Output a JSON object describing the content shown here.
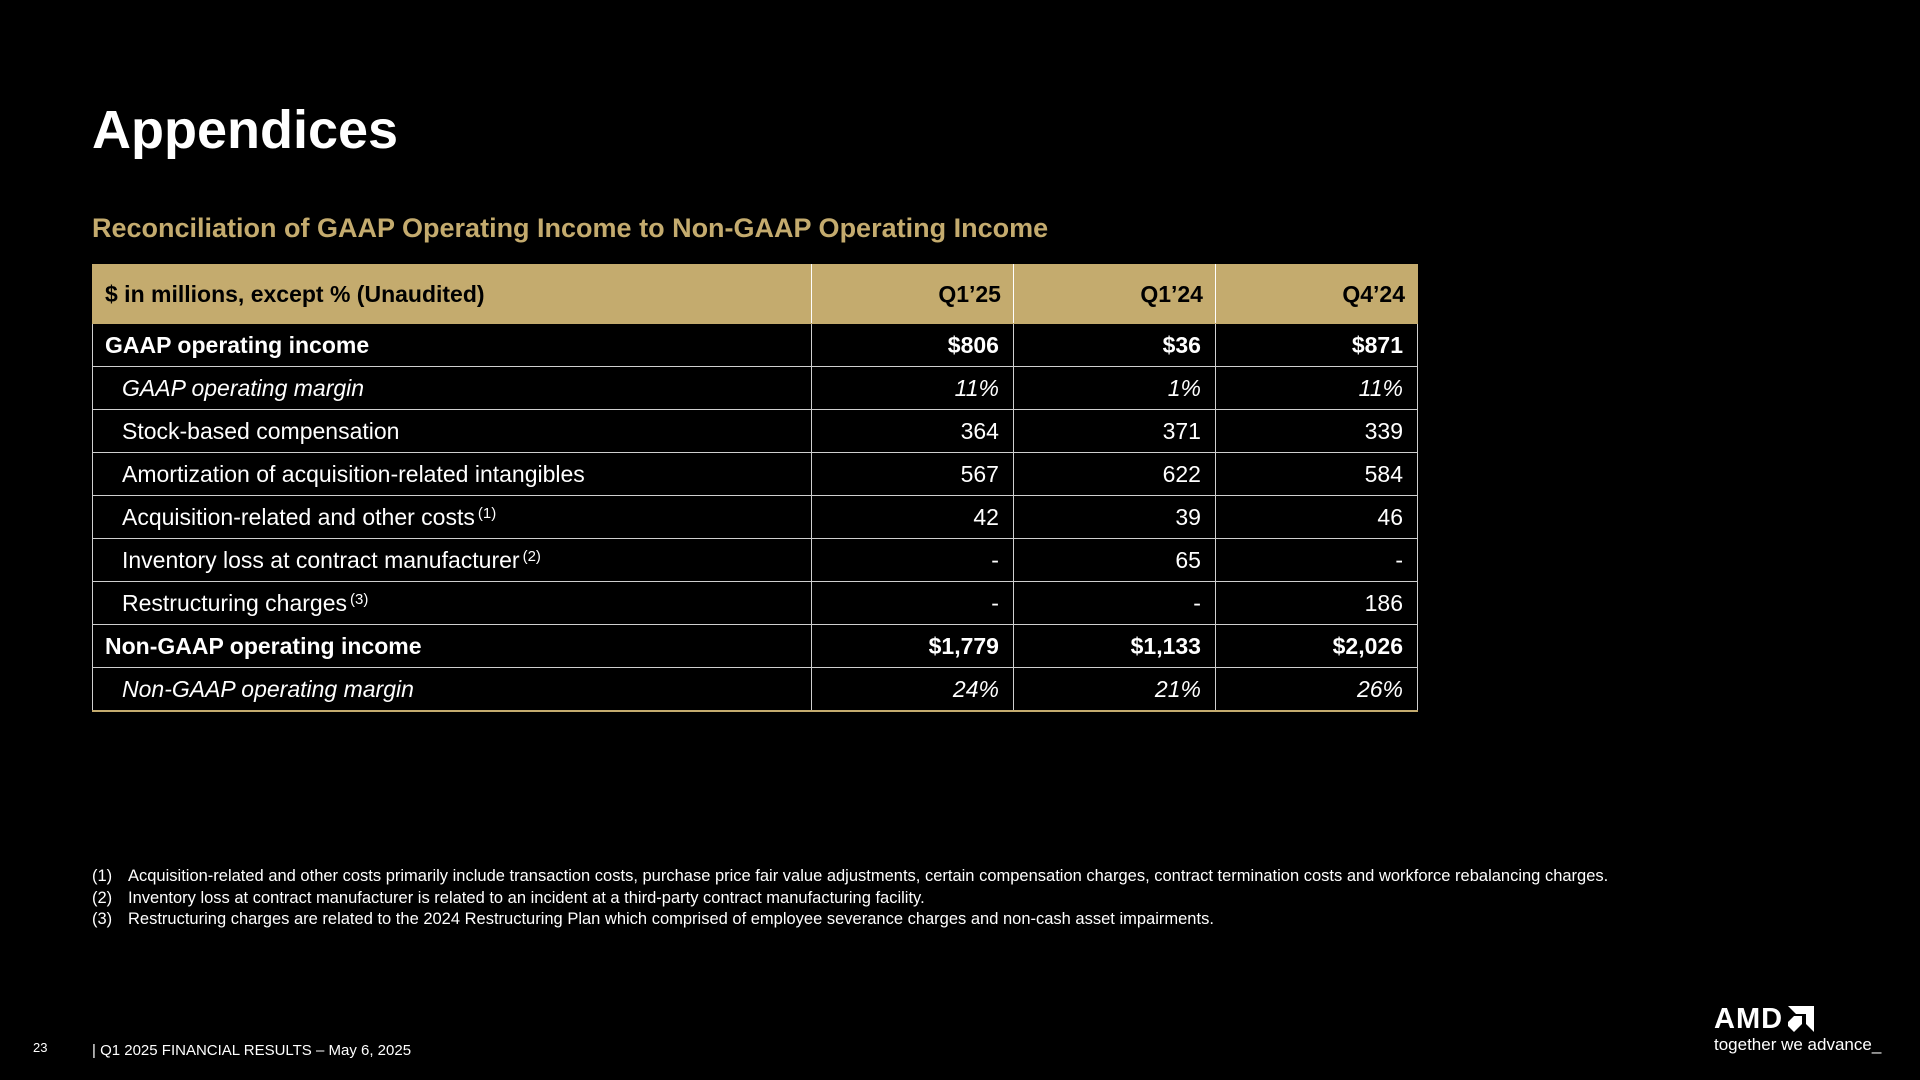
{
  "title": "Appendices",
  "subtitle": "Reconciliation of GAAP Operating Income to Non-GAAP Operating Income",
  "table": {
    "header": [
      "$ in millions, except % (Unaudited)",
      "Q1’25",
      "Q1’24",
      "Q4’24"
    ],
    "rows": [
      {
        "label": "GAAP operating income",
        "note": "",
        "values": [
          "$806",
          "$36",
          "$871"
        ]
      },
      {
        "label": "GAAP operating margin",
        "note": "",
        "values": [
          "11%",
          "1%",
          "11%"
        ]
      },
      {
        "label": "Stock-based compensation",
        "note": "",
        "values": [
          "364",
          "371",
          "339"
        ]
      },
      {
        "label": "Amortization of acquisition-related intangibles",
        "note": "",
        "values": [
          "567",
          "622",
          "584"
        ]
      },
      {
        "label": "Acquisition-related and other costs",
        "note": "(1)",
        "values": [
          "42",
          "39",
          "46"
        ]
      },
      {
        "label": "Inventory loss at contract manufacturer",
        "note": "(2)",
        "values": [
          "-",
          "65",
          "-"
        ]
      },
      {
        "label": "Restructuring charges",
        "note": "(3)",
        "values": [
          "-",
          "-",
          "186"
        ]
      },
      {
        "label": "Non-GAAP operating income",
        "note": "",
        "values": [
          "$1,779",
          "$1,133",
          "$2,026"
        ]
      },
      {
        "label": "Non-GAAP operating margin",
        "note": "",
        "values": [
          "24%",
          "21%",
          "26%"
        ]
      }
    ]
  },
  "footnotes": [
    {
      "num": "(1)",
      "text": "Acquisition-related and other costs primarily include transaction costs, purchase price fair value adjustments, certain compensation charges, contract termination costs and workforce rebalancing charges."
    },
    {
      "num": "(2)",
      "text": "Inventory loss at contract manufacturer is related to an incident at a third-party contract manufacturing facility."
    },
    {
      "num": "(3)",
      "text": "Restructuring charges are related to the 2024 Restructuring Plan which comprised of employee severance charges and non-cash asset impairments."
    }
  ],
  "footer": {
    "page_number": "23",
    "text": "|   Q1 2025 FINANCIAL RESULTS – May 6, 2025"
  },
  "logo": {
    "text": "AMD",
    "tagline": "together we advance_"
  }
}
